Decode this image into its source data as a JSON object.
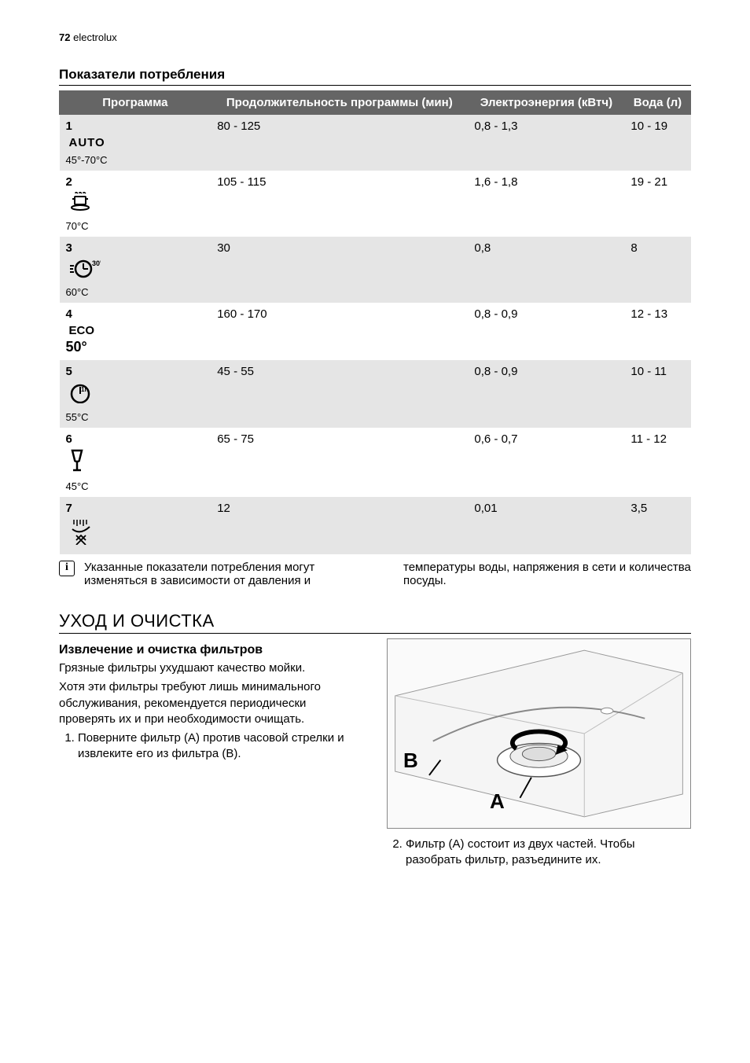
{
  "header": {
    "page_number": "72",
    "brand": "electrolux"
  },
  "consumption": {
    "title": "Показатели потребления",
    "columns": [
      "Программа",
      "Продолжитель­ность программы (мин)",
      "Электроэнергия (кВтч)",
      "Вода (л)"
    ],
    "rows": [
      {
        "num": "1",
        "icon_type": "auto",
        "icon_text": "AUTO",
        "temp": "45°-70°C",
        "duration": "80 - 125",
        "energy": "0,8 - 1,3",
        "water": "10 - 19"
      },
      {
        "num": "2",
        "icon_type": "pot",
        "icon_text": "",
        "temp": "70°C",
        "duration": "105 - 115",
        "energy": "1,6 - 1,8",
        "water": "19 - 21"
      },
      {
        "num": "3",
        "icon_type": "clock30",
        "icon_text": "30'",
        "temp": "60°C",
        "duration": "30",
        "energy": "0,8",
        "water": "8"
      },
      {
        "num": "4",
        "icon_type": "eco",
        "icon_text": "ECO",
        "eco_deg": "50°",
        "temp": "",
        "duration": "160 - 170",
        "energy": "0,8 - 0,9",
        "water": "12 - 13"
      },
      {
        "num": "5",
        "icon_type": "clock1h",
        "icon_text": "1h",
        "temp": "55°C",
        "duration": "45 - 55",
        "energy": "0,8 - 0,9",
        "water": "10 - 11"
      },
      {
        "num": "6",
        "icon_type": "glass",
        "icon_text": "",
        "temp": "45°C",
        "duration": "65 - 75",
        "energy": "0,6 - 0,7",
        "water": "11 - 12"
      },
      {
        "num": "7",
        "icon_type": "spray",
        "icon_text": "",
        "temp": "",
        "duration": "12",
        "energy": "0,01",
        "water": "3,5"
      }
    ],
    "styling": {
      "header_bg": "#656565",
      "header_text": "#ffffff",
      "row_odd_bg": "#e5e5e5",
      "row_even_bg": "#ffffff",
      "font_size": 15
    }
  },
  "note": {
    "icon_glyph": "i",
    "text": "Указанные показатели потребления могут изменяться в зависимости от давления и температуры воды, на­пряжения в сети и количества посу­ды."
  },
  "care": {
    "title": "УХОД И ОЧИСТКА",
    "sub_title": "Извлечение и очистка фильтров",
    "p1": "Грязные фильтры ухудшают качество мойки.",
    "p2": "Хотя эти фильтры требуют лишь мини­мального обслуживания, рекомендует­ся периодически проверять их и при не­обходимости очищать.",
    "step1": "Поверните фильтр (A) против часо­вой стрелки и извлеките его из фильтра (B).",
    "step2": "Фильтр (A) состоит из двух частей. Чтобы разобрать фильтр, разъеди­ните их.",
    "figure": {
      "label_A": "A",
      "label_B": "B"
    }
  }
}
